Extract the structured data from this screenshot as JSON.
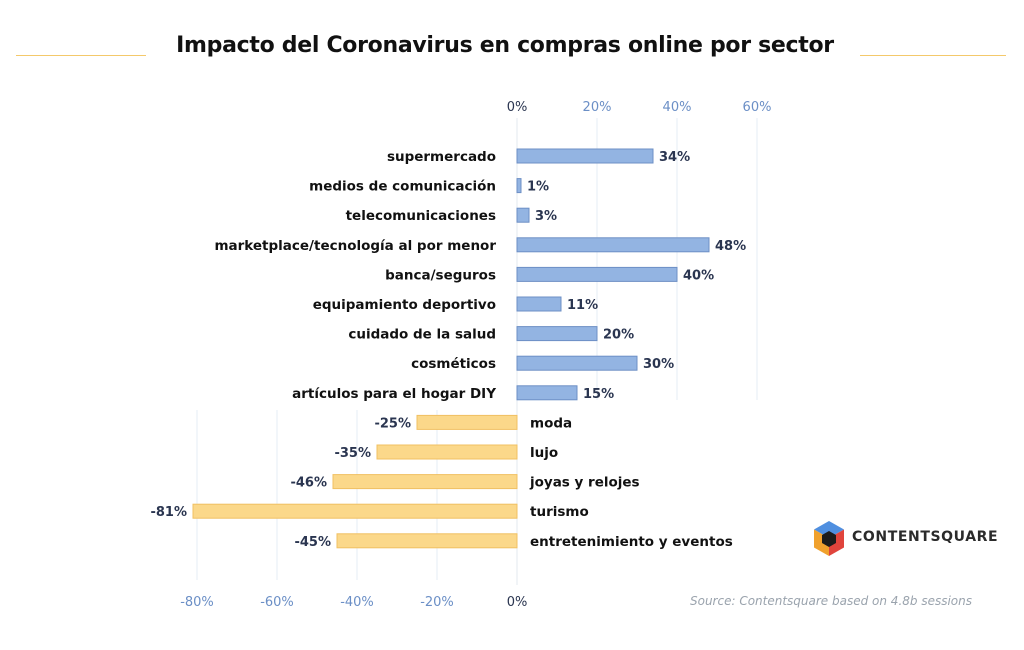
{
  "header": {
    "title": "Impacto del Coronavirus en compras online por sector"
  },
  "footer": {
    "source": "Source: Contentsquare based on 4.8b sessions",
    "brand": "CONTENTSQUARE"
  },
  "colors": {
    "positive": "#93b4e2",
    "positive_stroke": "#6d8fc5",
    "negative": "#fbd88a",
    "negative_stroke": "#f0c062",
    "accent_line": "#f4c96b",
    "tick_text": "#6b8fc6",
    "value_text": "#2a3550"
  },
  "chart_data": {
    "type": "bar",
    "orientation": "horizontal",
    "title": "Impacto del Coronavirus en compras online por sector",
    "categories": [
      "supermercado",
      "medios de comunicación",
      "telecomunicaciones",
      "marketplace/tecnología al por menor",
      "banca/seguros",
      "equipamiento deportivo",
      "cuidado de  la salud",
      "cosméticos",
      "artículos para el hogar DIY",
      "moda",
      "lujo",
      "joyas y relojes",
      "turismo",
      "entretenimiento y eventos"
    ],
    "values": [
      34,
      1,
      3,
      48,
      40,
      11,
      20,
      30,
      15,
      -25,
      -35,
      -46,
      -81,
      -45
    ],
    "value_labels": [
      "34%",
      "1%",
      "3%",
      "48%",
      "40%",
      "11%",
      "20%",
      "30%",
      "15%",
      "-25%",
      "-35%",
      "-46%",
      "-81%",
      "-45%"
    ],
    "top_ticks": [
      "0%",
      "20%",
      "40%",
      "60%"
    ],
    "top_tick_values": [
      0,
      20,
      40,
      60
    ],
    "bottom_ticks": [
      "-80%",
      "-60%",
      "-40%",
      "-20%",
      "0%"
    ],
    "bottom_tick_values": [
      -80,
      -60,
      -40,
      -20,
      0
    ],
    "xlim": [
      -80,
      60
    ],
    "xlabel": "",
    "ylabel": "",
    "grid": true
  }
}
